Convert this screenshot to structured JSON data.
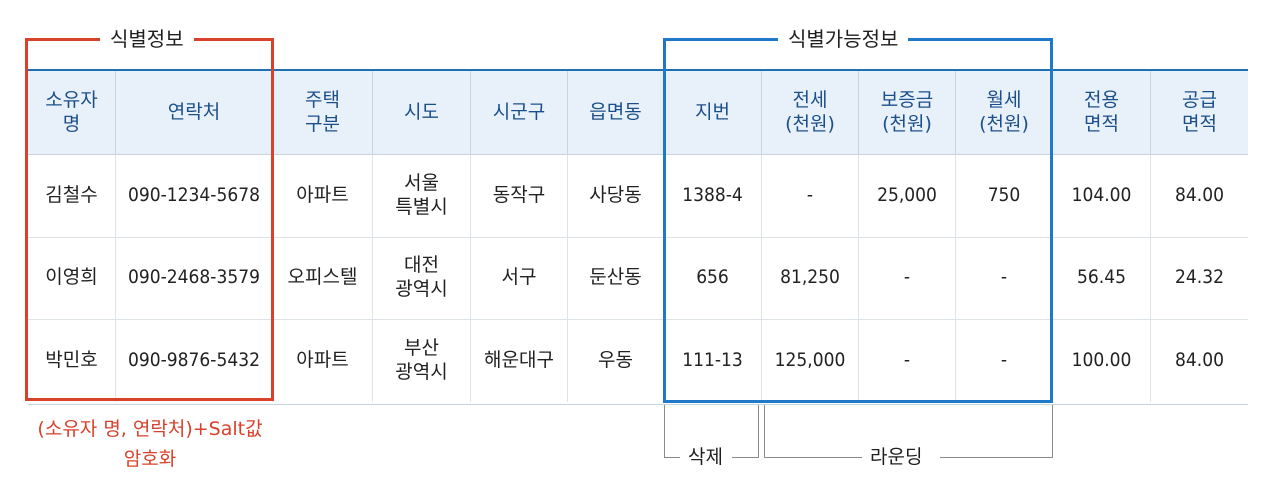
{
  "groups": {
    "identifying": "식별정보",
    "identifiable": "식별가능정보"
  },
  "table": {
    "headers": [
      "소유자\n명",
      "연락처",
      "주택\n구분",
      "시도",
      "시군구",
      "읍면동",
      "지번",
      "전세\n(천원)",
      "보증금\n(천원)",
      "월세\n(천원)",
      "전용\n면적",
      "공급\n면적"
    ],
    "rows": [
      [
        "김철수",
        "090-1234-5678",
        "아파트",
        "서울\n특별시",
        "동작구",
        "사당동",
        "1388-4",
        "-",
        "25,000",
        "750",
        "104.00",
        "84.00"
      ],
      [
        "이영희",
        "090-2468-3579",
        "오피스텔",
        "대전\n광역시",
        "서구",
        "둔산동",
        "656",
        "81,250",
        "-",
        "-",
        "56.45",
        "24.32"
      ],
      [
        "박민호",
        "090-9876-5432",
        "아파트",
        "부산\n광역시",
        "해운대구",
        "우동",
        "111-13",
        "125,000",
        "-",
        "-",
        "100.00",
        "84.00"
      ]
    ]
  },
  "annotations": {
    "encryption_note": "(소유자 명, 연락처)+Salt값\n암호화",
    "delete": "삭제",
    "rounding": "라운딩"
  },
  "colors": {
    "header_text": "#1b4f8a",
    "header_bg": "#e8f1fa",
    "red_box": "#d9412b",
    "blue_box": "#1f78c8"
  }
}
